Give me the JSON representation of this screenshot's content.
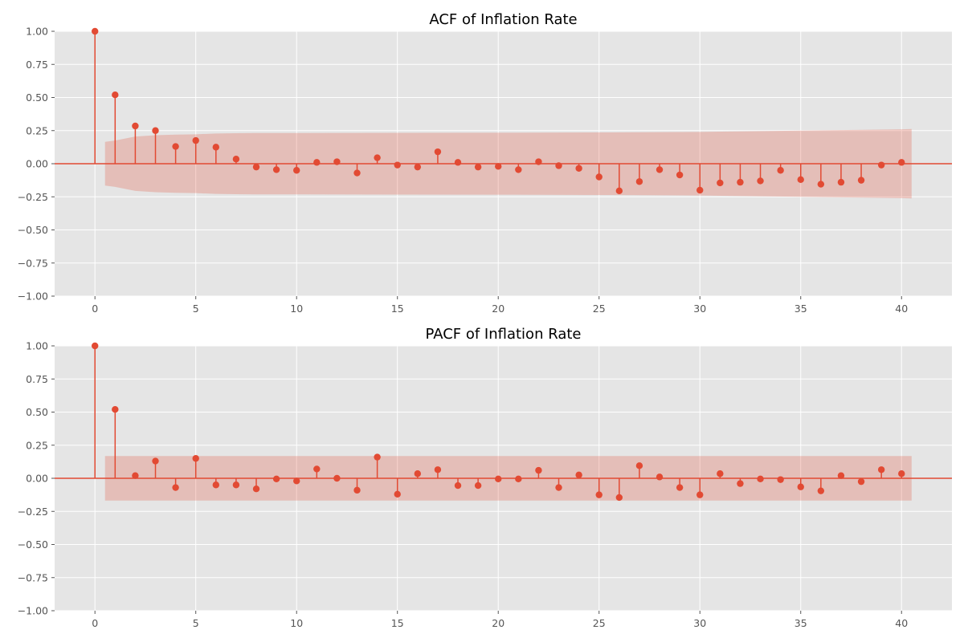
{
  "chart_data": [
    {
      "type": "stem",
      "title": "ACF of Inflation Rate",
      "xlabel": "",
      "ylabel": "",
      "xlim": [
        -2,
        42.5
      ],
      "ylim": [
        -1.0,
        1.0
      ],
      "xticks": [
        "0",
        "5",
        "10",
        "15",
        "20",
        "25",
        "30",
        "35",
        "40"
      ],
      "xtick_values": [
        0,
        5,
        10,
        15,
        20,
        25,
        30,
        35,
        40
      ],
      "yticks": [
        "−1.00",
        "−0.75",
        "−0.50",
        "−0.25",
        "0.00",
        "0.25",
        "0.50",
        "0.75",
        "1.00"
      ],
      "ytick_values": [
        -1.0,
        -0.75,
        -0.5,
        -0.25,
        0.0,
        0.25,
        0.5,
        0.75,
        1.0
      ],
      "grid": true,
      "lags": [
        0,
        1,
        2,
        3,
        4,
        5,
        6,
        7,
        8,
        9,
        10,
        11,
        12,
        13,
        14,
        15,
        16,
        17,
        18,
        19,
        20,
        21,
        22,
        23,
        24,
        25,
        26,
        27,
        28,
        29,
        30,
        31,
        32,
        33,
        34,
        35,
        36,
        37,
        38,
        39,
        40
      ],
      "values": [
        1.0,
        0.52,
        0.285,
        0.25,
        0.13,
        0.175,
        0.125,
        0.035,
        -0.025,
        -0.045,
        -0.05,
        0.01,
        0.015,
        -0.07,
        0.045,
        -0.01,
        -0.025,
        0.09,
        0.01,
        -0.025,
        -0.02,
        -0.045,
        0.015,
        -0.015,
        -0.035,
        -0.1,
        -0.205,
        -0.135,
        -0.045,
        -0.085,
        -0.2,
        -0.145,
        -0.14,
        -0.13,
        -0.05,
        -0.12,
        -0.155,
        -0.14,
        -0.125,
        -0.01,
        0.01
      ],
      "confint_x": [
        0.5,
        1,
        2,
        3,
        4,
        5,
        6,
        7,
        8,
        10,
        15,
        20,
        25,
        30,
        35,
        40,
        40.5
      ],
      "confint": [
        0.165,
        0.175,
        0.205,
        0.215,
        0.22,
        0.222,
        0.228,
        0.23,
        0.232,
        0.232,
        0.233,
        0.234,
        0.236,
        0.24,
        0.25,
        0.26,
        0.262
      ],
      "colors": {
        "stem": "#e24a33",
        "band": "#e24a33",
        "background": "#e5e5e5",
        "grid": "#ffffff"
      }
    },
    {
      "type": "stem",
      "title": "PACF of Inflation Rate",
      "xlabel": "",
      "ylabel": "",
      "xlim": [
        -2,
        42.5
      ],
      "ylim": [
        -1.0,
        1.0
      ],
      "xticks": [
        "0",
        "5",
        "10",
        "15",
        "20",
        "25",
        "30",
        "35",
        "40"
      ],
      "xtick_values": [
        0,
        5,
        10,
        15,
        20,
        25,
        30,
        35,
        40
      ],
      "yticks": [
        "−1.00",
        "−0.75",
        "−0.50",
        "−0.25",
        "0.00",
        "0.25",
        "0.50",
        "0.75",
        "1.00"
      ],
      "ytick_values": [
        -1.0,
        -0.75,
        -0.5,
        -0.25,
        0.0,
        0.25,
        0.5,
        0.75,
        1.0
      ],
      "grid": true,
      "lags": [
        0,
        1,
        2,
        3,
        4,
        5,
        6,
        7,
        8,
        9,
        10,
        11,
        12,
        13,
        14,
        15,
        16,
        17,
        18,
        19,
        20,
        21,
        22,
        23,
        24,
        25,
        26,
        27,
        28,
        29,
        30,
        31,
        32,
        33,
        34,
        35,
        36,
        37,
        38,
        39,
        40
      ],
      "values": [
        1.0,
        0.52,
        0.02,
        0.13,
        -0.07,
        0.15,
        -0.05,
        -0.05,
        -0.08,
        -0.005,
        -0.02,
        0.07,
        0.0,
        -0.09,
        0.16,
        -0.12,
        0.035,
        0.065,
        -0.055,
        -0.055,
        -0.005,
        -0.005,
        0.06,
        -0.07,
        0.025,
        -0.125,
        -0.145,
        0.095,
        0.01,
        -0.07,
        -0.125,
        0.035,
        -0.04,
        -0.005,
        -0.01,
        -0.065,
        -0.095,
        0.02,
        -0.025,
        0.065,
        0.035
      ],
      "confint_x": [
        0.5,
        40.5
      ],
      "confint": [
        0.168,
        0.168
      ],
      "colors": {
        "stem": "#e24a33",
        "band": "#e24a33",
        "background": "#e5e5e5",
        "grid": "#ffffff"
      }
    }
  ]
}
